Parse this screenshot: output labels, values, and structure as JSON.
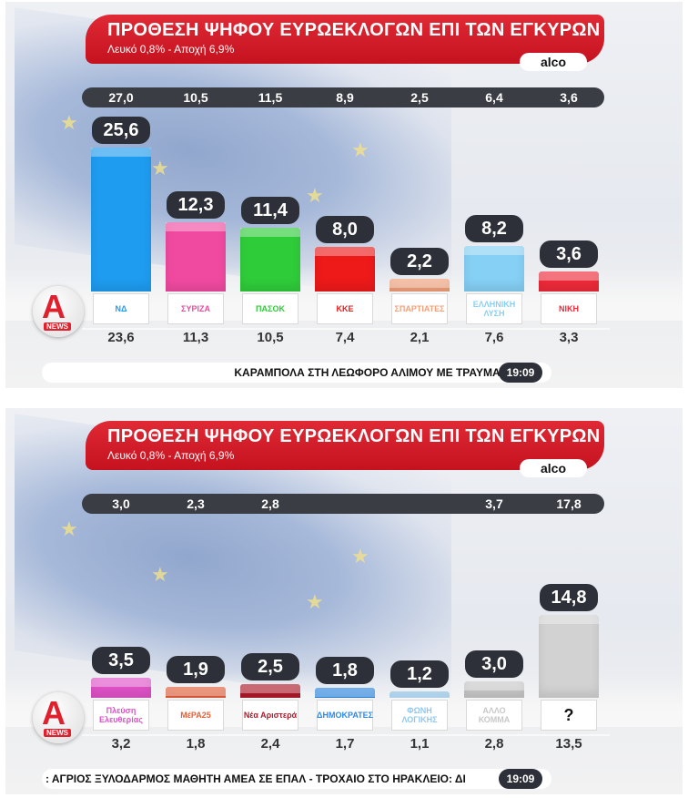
{
  "panels": [
    {
      "title": "ΠΡΟΘΕΣΗ ΨΗΦΟΥ ΕΥΡΩΕΚΛΟΓΩΝ ΕΠΙ ΤΩΝ ΕΓΚΥΡΩΝ",
      "subtitle": "Λευκό 0,8% - Αποχή 6,9%",
      "source": "alco",
      "ticker": "ΚΑΡΑΜΠΟΛΑ ΣΤΗ ΛΕΩΦΟΡΟ ΑΛΙΜΟΥ ΜΕ ΤΡΑΥΜΑΤ",
      "clock": "19:09",
      "channel": {
        "letter": "A",
        "tag": "NEWS"
      }
    },
    {
      "title": "ΠΡΟΘΕΣΗ ΨΗΦΟΥ ΕΥΡΩΕΚΛΟΓΩΝ ΕΠΙ ΤΩΝ ΕΓΚΥΡΩΝ",
      "subtitle": "Λευκό 0,8% - Αποχή 6,9%",
      "source": "alco",
      "ticker": ": ΑΓΡΙΟΣ ΞΥΛΟΔΑΡΜΟΣ ΜΑΘΗΤΗ ΑΜΕΑ ΣΕ ΕΠΑΛ   -   ΤΡΟΧΑΙΟ ΣΤΟ ΗΡΑΚΛΕΙΟ: ΔΙ",
      "clock": "19:09",
      "channel": {
        "letter": "A",
        "tag": "NEWS"
      }
    }
  ],
  "chart_data": [
    {
      "type": "bar",
      "title": "ΠΡΟΘΕΣΗ ΨΗΦΟΥ ΕΥΡΩΕΚΛΟΓΩΝ ΕΠΙ ΤΩΝ ΕΓΚΥΡΩΝ",
      "subtitle": "Λευκό 0,8% - Αποχή 6,9%",
      "ylim": [
        0,
        26
      ],
      "bars": [
        {
          "value": 25.6,
          "label": "25,6",
          "top_value": "27,0",
          "bottom_value": "23,6",
          "logo": "ΝΔ",
          "color": "#1e9cf0"
        },
        {
          "value": 12.3,
          "label": "12,3",
          "top_value": "10,5",
          "bottom_value": "11,3",
          "logo": "ΣΥΡΙΖΑ",
          "color": "#f04aa0"
        },
        {
          "value": 11.4,
          "label": "11,4",
          "top_value": "11,5",
          "bottom_value": "10,5",
          "logo": "ΠΑΣΟΚ",
          "color": "#2fcc3a"
        },
        {
          "value": 8.0,
          "label": "8,0",
          "top_value": "8,9",
          "bottom_value": "7,4",
          "logo": "ΚΚΕ",
          "color": "#ee1a1a"
        },
        {
          "value": 2.2,
          "label": "2,2",
          "top_value": "2,5",
          "bottom_value": "2,1",
          "logo": "ΣΠΑΡΤΙΑΤΕΣ",
          "color": "#f2a07a"
        },
        {
          "value": 8.2,
          "label": "8,2",
          "top_value": "6,4",
          "bottom_value": "7,6",
          "logo": "ΕΛΛΗΝΙΚΗ ΛΥΣΗ",
          "color": "#86d0f5"
        },
        {
          "value": 3.6,
          "label": "3,6",
          "top_value": "3,6",
          "bottom_value": "3,3",
          "logo": "ΝΙΚΗ",
          "color": "#ee2a3a"
        }
      ]
    },
    {
      "type": "bar",
      "title": "ΠΡΟΘΕΣΗ ΨΗΦΟΥ ΕΥΡΩΕΚΛΟΓΩΝ ΕΠΙ ΤΩΝ ΕΓΚΥΡΩΝ",
      "subtitle": "Λευκό 0,8% - Αποχή 6,9%",
      "ylim": [
        0,
        26
      ],
      "bars": [
        {
          "value": 3.5,
          "label": "3,5",
          "top_value": "3,0",
          "bottom_value": "3,2",
          "logo": "Πλεύση Ελευθερίας",
          "color": "#e052c8"
        },
        {
          "value": 1.9,
          "label": "1,9",
          "top_value": "2,3",
          "bottom_value": "1,8",
          "logo": "ΜέΡΑ25",
          "color": "#e8603a"
        },
        {
          "value": 2.5,
          "label": "2,5",
          "top_value": "2,8",
          "bottom_value": "2,4",
          "logo": "Νέα Αριστερά",
          "color": "#b01a2a"
        },
        {
          "value": 1.8,
          "label": "1,8",
          "top_value": "",
          "bottom_value": "1,7",
          "logo": "ΔΗΜΟΚΡΑΤΕΣ",
          "color": "#2a8ae8"
        },
        {
          "value": 1.2,
          "label": "1,2",
          "top_value": "",
          "bottom_value": "1,1",
          "logo": "ΦΩΝΗ ΛΟΓΙΚΗΣ",
          "color": "#8ec8f0"
        },
        {
          "value": 3.0,
          "label": "3,0",
          "top_value": "3,7",
          "bottom_value": "2,8",
          "logo": "ΑΛΛΟ ΚΟΜΜΑ",
          "color": "#c8c8c8"
        },
        {
          "value": 14.8,
          "label": "14,8",
          "top_value": "17,8",
          "bottom_value": "13,5",
          "logo": "?",
          "color": "#d2d2d2"
        }
      ]
    }
  ]
}
